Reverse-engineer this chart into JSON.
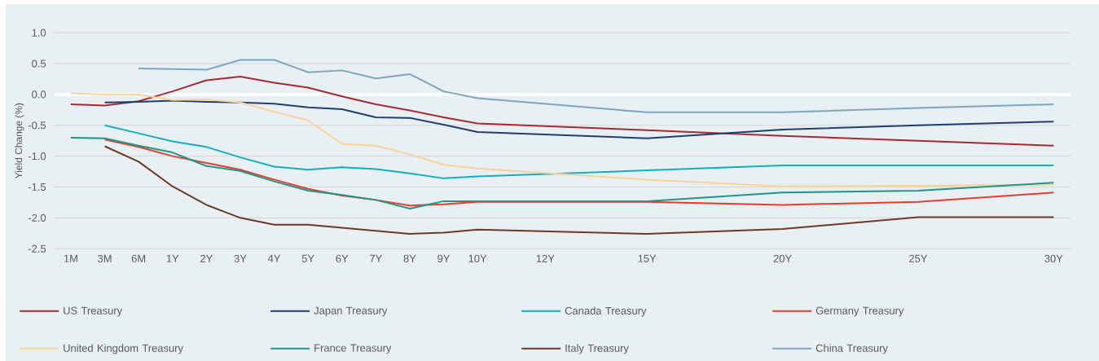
{
  "chart_data": {
    "type": "line",
    "ylabel": "Yield Change (%)",
    "categories": [
      "1M",
      "3M",
      "6M",
      "1Y",
      "2Y",
      "3Y",
      "4Y",
      "5Y",
      "6Y",
      "7Y",
      "8Y",
      "9Y",
      "10Y",
      null,
      "12Y",
      null,
      null,
      "15Y",
      null,
      null,
      null,
      "20Y",
      null,
      null,
      null,
      "25Y",
      null,
      null,
      null,
      "30Y"
    ],
    "ylim": [
      -2.5,
      1.0
    ],
    "yticks": [
      {
        "value": -2.5,
        "label": "-2.5"
      },
      {
        "value": -2,
        "label": "-2.0"
      },
      {
        "value": -1.5,
        "label": "-1.5"
      },
      {
        "value": -1,
        "label": "-1.0"
      },
      {
        "value": -0.5,
        "label": "-0.5"
      },
      {
        "value": 0,
        "label": "0.0"
      },
      {
        "value": 0.5,
        "label": "0.5"
      },
      {
        "value": 1,
        "label": "1.0"
      }
    ],
    "grid": "y",
    "legend": "bottom",
    "ref_lines": [
      {
        "axis": "y",
        "value": 0,
        "color": "#ffffff"
      }
    ],
    "series": [
      {
        "name": "US Treasury",
        "color": "#a52a35",
        "values": [
          -0.16,
          -0.18,
          -0.11,
          0.05,
          0.23,
          0.29,
          0.19,
          0.11,
          -0.03,
          -0.16,
          -0.26,
          -0.37,
          -0.47,
          null,
          null,
          null,
          null,
          -0.58,
          null,
          null,
          null,
          -0.67,
          null,
          null,
          null,
          -0.75,
          null,
          null,
          null,
          -0.83
        ]
      },
      {
        "name": "Japan Treasury",
        "color": "#1f3f73",
        "values": [
          null,
          -0.13,
          -0.12,
          -0.1,
          -0.12,
          -0.13,
          -0.15,
          -0.21,
          -0.24,
          -0.37,
          -0.38,
          -0.49,
          -0.61,
          null,
          null,
          null,
          null,
          -0.71,
          null,
          null,
          null,
          -0.57,
          null,
          null,
          null,
          -0.5,
          null,
          null,
          null,
          -0.44
        ]
      },
      {
        "name": "Canada Treasury",
        "color": "#12afc0",
        "values": [
          null,
          -0.5,
          -0.63,
          -0.76,
          -0.85,
          -1.02,
          -1.17,
          -1.22,
          -1.18,
          -1.21,
          -1.28,
          -1.36,
          -1.33,
          null,
          null,
          null,
          null,
          -1.23,
          null,
          null,
          null,
          -1.15,
          null,
          null,
          null,
          -1.15,
          null,
          null,
          null,
          -1.15
        ]
      },
      {
        "name": "Germany Treasury",
        "color": "#e83c2e",
        "values": [
          null,
          -0.73,
          -0.85,
          -1.0,
          -1.11,
          -1.22,
          -1.38,
          -1.53,
          -1.64,
          -1.71,
          -1.8,
          -1.78,
          -1.74,
          null,
          null,
          null,
          null,
          -1.74,
          null,
          null,
          null,
          -1.79,
          null,
          null,
          null,
          -1.74,
          null,
          null,
          null,
          -1.59
        ]
      },
      {
        "name": "United Kingdom Treasury",
        "color": "#fcd29a",
        "values": [
          0.02,
          0.0,
          0.0,
          -0.09,
          -0.08,
          -0.13,
          -0.28,
          -0.42,
          -0.8,
          -0.83,
          -0.97,
          -1.14,
          -1.2,
          null,
          null,
          null,
          null,
          -1.38,
          null,
          null,
          null,
          -1.49,
          null,
          null,
          null,
          -1.48,
          null,
          null,
          null,
          -1.46
        ]
      },
      {
        "name": "France Treasury",
        "color": "#20968a",
        "values": [
          -0.7,
          -0.71,
          -0.83,
          -0.94,
          -1.16,
          -1.24,
          -1.41,
          -1.56,
          -1.63,
          -1.71,
          -1.85,
          -1.73,
          -1.73,
          null,
          null,
          null,
          null,
          -1.73,
          null,
          null,
          null,
          -1.59,
          null,
          null,
          null,
          -1.56,
          null,
          null,
          null,
          -1.43
        ]
      },
      {
        "name": "Italy Treasury",
        "color": "#6e3a25",
        "values": [
          null,
          -0.84,
          -1.09,
          -1.49,
          -1.79,
          -2.0,
          -2.11,
          -2.11,
          -2.16,
          -2.21,
          -2.26,
          -2.24,
          -2.19,
          null,
          null,
          null,
          null,
          -2.26,
          null,
          null,
          null,
          -2.18,
          null,
          null,
          null,
          -1.99,
          null,
          null,
          null,
          -1.99
        ]
      },
      {
        "name": "China Treasury",
        "color": "#7ba7bf",
        "values": [
          null,
          null,
          0.42,
          0.41,
          0.4,
          0.56,
          0.56,
          0.36,
          0.39,
          0.26,
          0.33,
          0.05,
          -0.06,
          null,
          null,
          null,
          null,
          -0.29,
          null,
          null,
          null,
          -0.29,
          null,
          null,
          null,
          -0.22,
          null,
          null,
          null,
          -0.16
        ]
      }
    ]
  }
}
